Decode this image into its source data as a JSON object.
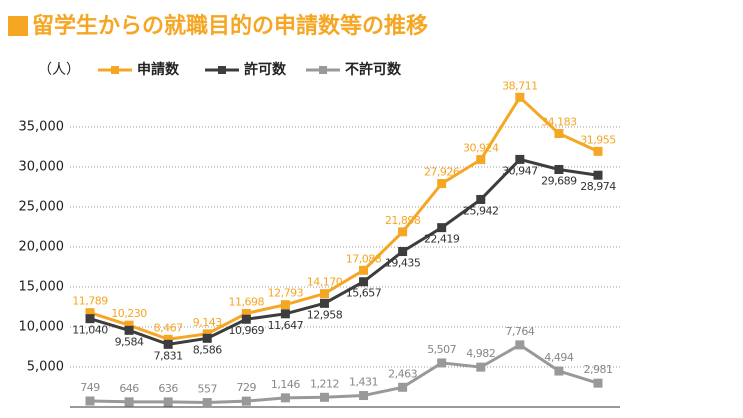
{
  "chart_data": {
    "type": "line",
    "title": "留学生からの就職目的の申請数等の推移",
    "y_label": "（人）",
    "categories": [
      null,
      null,
      null,
      null,
      null,
      null,
      null,
      null,
      null,
      null,
      null,
      null,
      null,
      null
    ],
    "series": [
      {
        "name": "申請数",
        "color": "#f5a623",
        "values": [
          11789,
          10230,
          8467,
          9143,
          11698,
          12793,
          14170,
          17088,
          21898,
          27926,
          30924,
          38711,
          34183,
          31955
        ],
        "value_labels": [
          "11,789",
          "10,230",
          "8,467",
          "9,143",
          "11,698",
          "12,793",
          "14,170",
          "17,088",
          "21,898",
          "27,926",
          "30,924",
          "38,711",
          "34,183",
          "31,955"
        ]
      },
      {
        "name": "許可数",
        "color": "#3d3d3d",
        "values": [
          11040,
          9584,
          7831,
          8586,
          10969,
          11647,
          12958,
          15657,
          19435,
          22419,
          25942,
          30947,
          29689,
          28974
        ],
        "value_labels": [
          "11,040",
          "9,584",
          "7,831",
          "8,586",
          "10,969",
          "11,647",
          "12,958",
          "15,657",
          "19,435",
          "22,419",
          "25,942",
          "30,947",
          "29,689",
          "28,974"
        ]
      },
      {
        "name": "不許可数",
        "color": "#999999",
        "values": [
          749,
          646,
          636,
          557,
          729,
          1146,
          1212,
          1431,
          2463,
          5507,
          4982,
          7764,
          4494,
          2981
        ],
        "value_labels": [
          "749",
          "646",
          "636",
          "557",
          "729",
          "1,146",
          "1,212",
          "1,431",
          "2,463",
          "5,507",
          "4,982",
          "7,764",
          "4,494",
          "2,981"
        ]
      }
    ],
    "ylim": [
      0,
      40000
    ],
    "yticks": [
      {
        "value": 5000,
        "label": "5,000"
      },
      {
        "value": 10000,
        "label": "10,000"
      },
      {
        "value": 15000,
        "label": "15,000"
      },
      {
        "value": 20000,
        "label": "20,000"
      },
      {
        "value": 25000,
        "label": "25,000"
      },
      {
        "value": 30000,
        "label": "30,000"
      },
      {
        "value": 35000,
        "label": "35,000"
      }
    ],
    "grid": true
  }
}
